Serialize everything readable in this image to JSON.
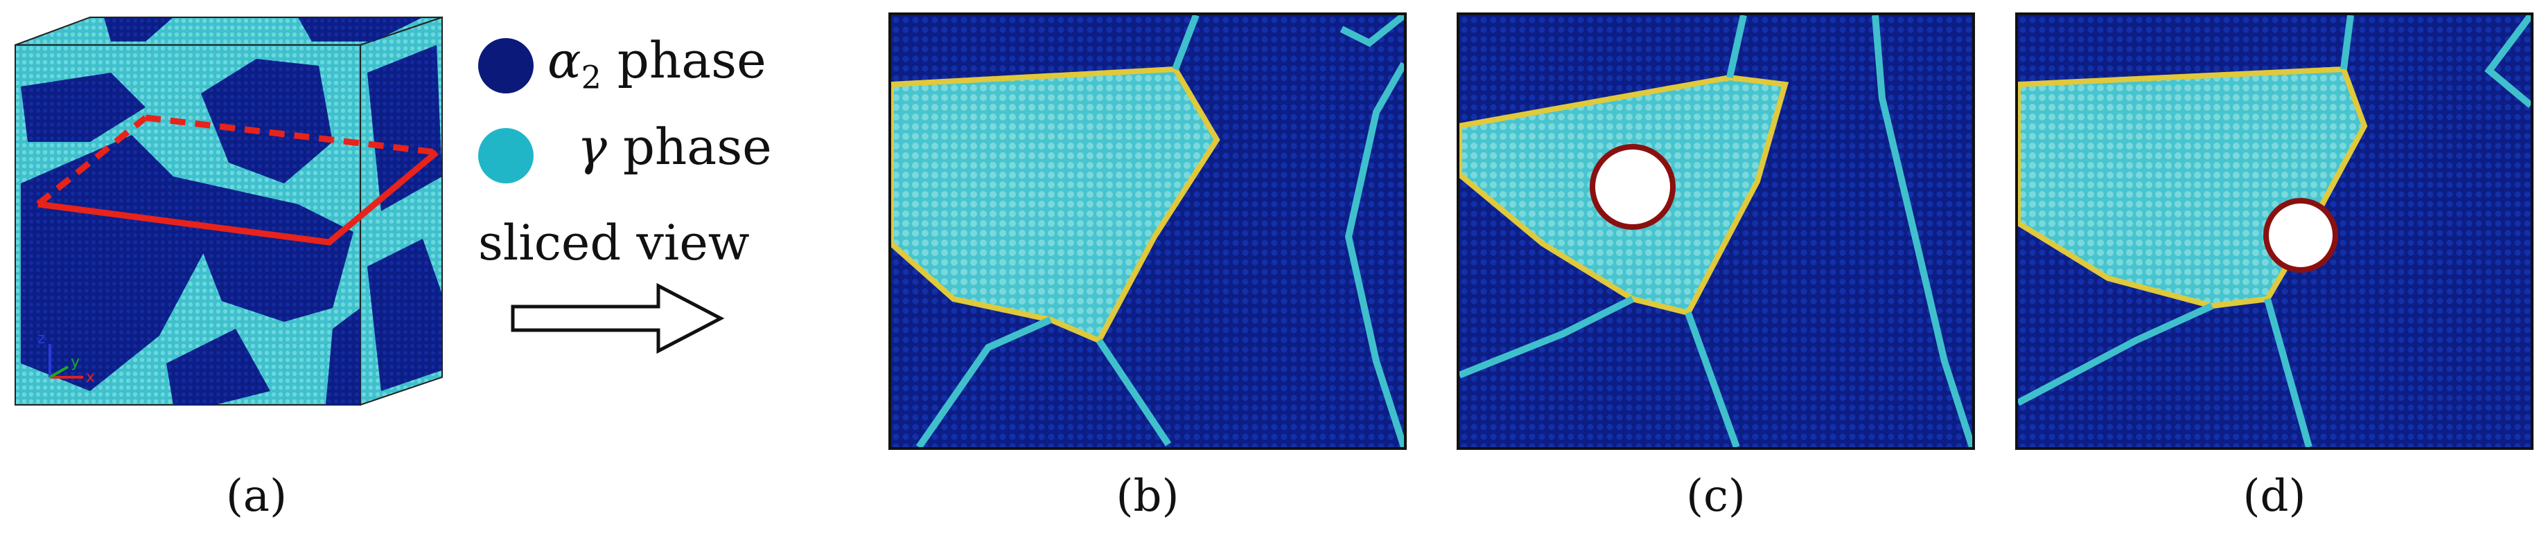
{
  "figure": {
    "panels": [
      {
        "id": "a",
        "label": "(a)"
      },
      {
        "id": "b",
        "label": "(b)"
      },
      {
        "id": "c",
        "label": "(c)"
      },
      {
        "id": "d",
        "label": "(d)"
      }
    ]
  },
  "legend": {
    "alpha2": {
      "symbol": "α",
      "subscript": "2",
      "text": "phase",
      "color": "#0b1a7a"
    },
    "gamma": {
      "symbol": "γ",
      "text": "phase",
      "color": "#20b6c8"
    }
  },
  "arrow_label": "sliced view",
  "axes_triad": {
    "x": "x",
    "y": "y",
    "z": "z"
  },
  "colors": {
    "alpha2": "#0c1e86",
    "gamma": "#4cc8d2",
    "boundary_yellow": "#e0c93a",
    "boundary_red": "#d9342a",
    "slice_line": "#e8231b",
    "void": "#ffffff"
  }
}
